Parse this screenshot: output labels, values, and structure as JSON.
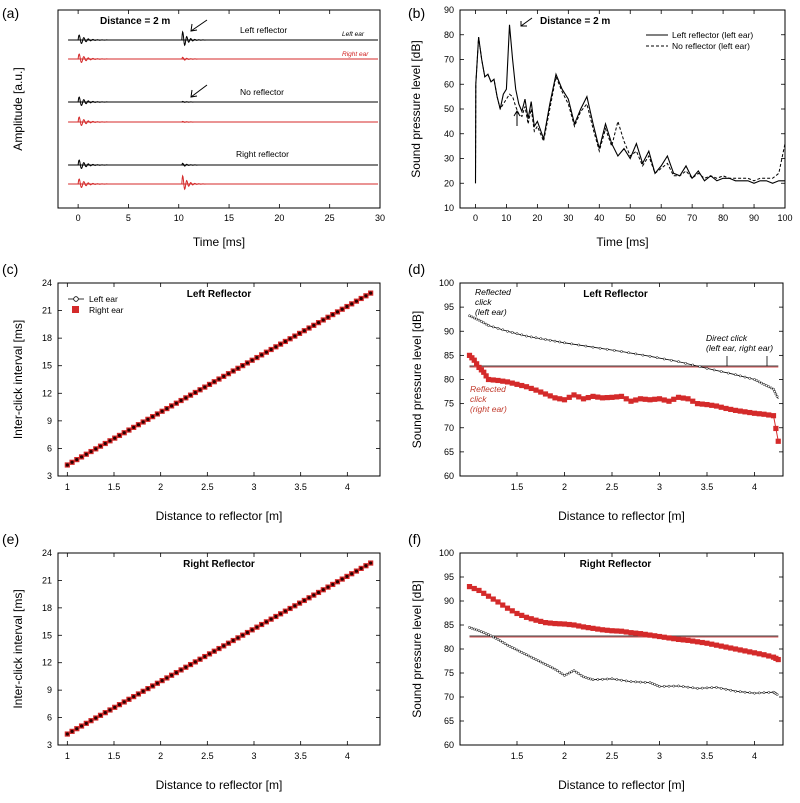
{
  "colors": {
    "red": "#d42a2a",
    "black": "#000000",
    "redline": "#e07070"
  },
  "panels": {
    "a": {
      "label": "(a)"
    },
    "b": {
      "label": "(b)"
    },
    "c": {
      "label": "(c)"
    },
    "d": {
      "label": "(d)"
    },
    "e": {
      "label": "(e)"
    },
    "f": {
      "label": "(f)"
    }
  },
  "chart_data": [
    {
      "id": "a",
      "type": "line",
      "title": "Distance = 2 m",
      "xlabel": "Time [ms]",
      "ylabel": "Amplitude [a.u.]",
      "xlim": [
        -2,
        30
      ],
      "xticks": [
        0,
        5,
        10,
        15,
        20,
        25,
        30
      ],
      "traces": [
        {
          "name": "Left reflector",
          "ear": "Left ear",
          "color": "#000000",
          "direct": 1.0,
          "reflected": 1.7
        },
        {
          "name": "Left reflector",
          "ear": "Right ear",
          "color": "#d42a2a",
          "direct": 1.0,
          "reflected": 0.35
        },
        {
          "name": "No reflector",
          "ear": "",
          "color": "#000000",
          "direct": 1.0,
          "reflected": 0.12
        },
        {
          "name": "No reflector",
          "ear": "",
          "color": "#d42a2a",
          "direct": 1.0,
          "reflected": 0.12
        },
        {
          "name": "Right reflector",
          "ear": "",
          "color": "#000000",
          "direct": 1.0,
          "reflected": 0.35
        },
        {
          "name": "Right reflector",
          "ear": "",
          "color": "#d42a2a",
          "direct": 1.0,
          "reflected": 1.7
        }
      ],
      "labels": {
        "left_reflector": "Left reflector",
        "no_reflector": "No reflector",
        "right_reflector": "Right reflector",
        "left_ear": "Left ear",
        "right_ear": "Right ear"
      }
    },
    {
      "id": "b",
      "type": "line",
      "title": "Distance = 2 m",
      "xlabel": "Time [ms]",
      "ylabel": "Sound pressure level [dB]",
      "xlim": [
        -5,
        100
      ],
      "ylim": [
        10,
        90
      ],
      "xticks": [
        0,
        10,
        20,
        30,
        40,
        50,
        60,
        70,
        80,
        90,
        100
      ],
      "yticks": [
        10,
        20,
        30,
        40,
        50,
        60,
        70,
        80,
        90
      ],
      "series": [
        {
          "name": "Left reflector (left ear)",
          "style": "solid",
          "x": [
            0,
            0.1,
            1,
            2,
            3,
            4,
            5,
            6,
            7,
            8,
            9,
            10,
            11,
            12,
            13,
            14,
            15,
            16,
            17,
            18,
            19,
            20,
            22,
            24,
            26,
            28,
            30,
            32,
            34,
            36,
            38,
            40,
            42,
            44,
            46,
            48,
            50,
            52,
            54,
            56,
            58,
            60,
            62,
            64,
            66,
            68,
            70,
            72,
            74,
            76,
            78,
            80,
            82,
            84,
            86,
            88,
            90,
            92,
            94,
            96,
            98,
            100
          ],
          "y": [
            20,
            60,
            79,
            70,
            63,
            64,
            61,
            62,
            55,
            50,
            56,
            58,
            84,
            70,
            58,
            52,
            49,
            54,
            46,
            53,
            43,
            45,
            38,
            52,
            64,
            58,
            54,
            44,
            50,
            55,
            44,
            34,
            44,
            36,
            31,
            34,
            30,
            36,
            28,
            33,
            24,
            27,
            31,
            24,
            23,
            27,
            22,
            25,
            21,
            23,
            21,
            22,
            22,
            21,
            21,
            21,
            20,
            21,
            21,
            20,
            21,
            21
          ]
        },
        {
          "name": "No reflector (left ear)",
          "style": "dashed",
          "x": [
            0,
            0.1,
            1,
            2,
            3,
            4,
            5,
            6,
            7,
            8,
            9,
            10,
            11,
            12,
            13,
            14,
            15,
            16,
            17,
            18,
            19,
            20,
            22,
            24,
            26,
            28,
            30,
            32,
            34,
            36,
            38,
            40,
            42,
            44,
            46,
            48,
            50,
            52,
            54,
            56,
            58,
            60,
            62,
            64,
            66,
            68,
            70,
            72,
            74,
            76,
            78,
            80,
            82,
            84,
            86,
            88,
            90,
            92,
            94,
            96,
            98,
            100
          ],
          "y": [
            20,
            60,
            79,
            70,
            63,
            64,
            61,
            62,
            55,
            50,
            52,
            54,
            56,
            55,
            51,
            48,
            47,
            51,
            44,
            50,
            41,
            43,
            37,
            50,
            63,
            57,
            52,
            43,
            49,
            52,
            42,
            33,
            42,
            35,
            45,
            37,
            31,
            33,
            27,
            31,
            24,
            26,
            28,
            23,
            23,
            25,
            22,
            24,
            22,
            23,
            22,
            23,
            22,
            22,
            22,
            22,
            21,
            22,
            22,
            22,
            24,
            36
          ]
        }
      ],
      "annotations": [
        "left-arrow-peak",
        "up-arrow-no-reflector"
      ]
    },
    {
      "id": "c",
      "type": "scatter",
      "title": "Left Reflector",
      "xlabel": "Distance to reflector [m]",
      "ylabel": "Inter-click interval [ms]",
      "xlim": [
        0.9,
        4.35
      ],
      "ylim": [
        3,
        24
      ],
      "xticks": [
        1,
        1.5,
        2,
        2.5,
        3,
        3.5,
        4
      ],
      "yticks": [
        3,
        6,
        9,
        12,
        15,
        18,
        21,
        24
      ],
      "series": [
        {
          "name": "Left ear",
          "marker": "open-circle",
          "x_start": 1.0,
          "x_end": 4.25,
          "y_start": 4.2,
          "y_end": 22.9,
          "n": 65
        },
        {
          "name": "Right ear",
          "marker": "red-square",
          "x_start": 1.0,
          "x_end": 4.25,
          "y_start": 4.2,
          "y_end": 22.9,
          "n": 65
        }
      ]
    },
    {
      "id": "d",
      "type": "line",
      "title": "Left Reflector",
      "xlabel": "Distance to reflector [m]",
      "ylabel": "Sound pressure level [dB]",
      "xlim": [
        0.9,
        4.3
      ],
      "ylim": [
        60,
        100
      ],
      "xticks": [
        1.5,
        2,
        2.5,
        3,
        3.5,
        4
      ],
      "yticks": [
        60,
        65,
        70,
        75,
        80,
        85,
        90,
        95,
        100
      ],
      "series": [
        {
          "name": "Reflected click (left ear)",
          "marker": "small-dot",
          "x": [
            1.0,
            1.1,
            1.2,
            1.4,
            1.6,
            1.8,
            2.0,
            2.3,
            2.6,
            2.9,
            3.2,
            3.5,
            3.8,
            4.0,
            4.1,
            4.2,
            4.25
          ],
          "y": [
            93.2,
            92.3,
            91.2,
            90.0,
            89.0,
            88.3,
            87.6,
            86.7,
            85.8,
            84.8,
            83.7,
            82.3,
            81.0,
            80.0,
            79.0,
            78.0,
            76.0
          ]
        },
        {
          "name": "Reflected click (right ear)",
          "marker": "red-square",
          "x": [
            1.0,
            1.05,
            1.1,
            1.15,
            1.2,
            1.3,
            1.4,
            1.5,
            1.6,
            1.7,
            1.8,
            1.9,
            2.0,
            2.1,
            2.2,
            2.3,
            2.4,
            2.5,
            2.6,
            2.7,
            2.8,
            2.9,
            3.0,
            3.1,
            3.2,
            3.3,
            3.4,
            3.5,
            3.6,
            3.7,
            3.8,
            3.9,
            4.0,
            4.1,
            4.2,
            4.25
          ],
          "y": [
            85.0,
            84.0,
            82.5,
            81.5,
            80.0,
            79.8,
            79.5,
            79.0,
            78.5,
            77.8,
            77.0,
            76.2,
            75.8,
            76.8,
            76.0,
            76.5,
            76.2,
            76.3,
            76.5,
            75.5,
            76.0,
            75.8,
            76.0,
            75.5,
            76.3,
            76.0,
            75.0,
            74.8,
            74.5,
            74.0,
            73.6,
            73.3,
            73.0,
            72.8,
            72.5,
            67.2
          ]
        },
        {
          "name": "Direct click (left ear)",
          "style": "line",
          "x": [
            1.0,
            4.25
          ],
          "y": [
            82.8,
            82.8
          ]
        },
        {
          "name": "Direct click (right ear)",
          "style": "line-red",
          "x": [
            1.0,
            4.25
          ],
          "y": [
            82.6,
            82.6
          ]
        }
      ],
      "labels": {
        "refl_left": [
          "Reflected",
          "click",
          "(left ear)"
        ],
        "refl_right": [
          "Reflected",
          "click",
          "(right ear)"
        ],
        "direct": "Direct click",
        "direct_ears": "(left ear,  right ear)"
      }
    },
    {
      "id": "e",
      "type": "scatter",
      "title": "Right Reflector",
      "xlabel": "Distance to reflector [m]",
      "ylabel": "Inter-click interval [ms]",
      "xlim": [
        0.9,
        4.35
      ],
      "ylim": [
        3,
        24
      ],
      "xticks": [
        1,
        1.5,
        2,
        2.5,
        3,
        3.5,
        4
      ],
      "yticks": [
        3,
        6,
        9,
        12,
        15,
        18,
        21,
        24
      ],
      "series": [
        {
          "name": "Left ear",
          "marker": "open-circle",
          "x_start": 1.0,
          "x_end": 4.25,
          "y_start": 4.2,
          "y_end": 22.9,
          "n": 65
        },
        {
          "name": "Right ear",
          "marker": "red-square",
          "x_start": 1.0,
          "x_end": 4.25,
          "y_start": 4.2,
          "y_end": 22.9,
          "n": 65
        }
      ]
    },
    {
      "id": "f",
      "type": "line",
      "title": "Right Reflector",
      "xlabel": "Distance to reflector [m]",
      "ylabel": "Sound pressure level [dB]",
      "xlim": [
        0.9,
        4.3
      ],
      "ylim": [
        60,
        100
      ],
      "xticks": [
        1.5,
        2,
        2.5,
        3,
        3.5,
        4
      ],
      "yticks": [
        60,
        65,
        70,
        75,
        80,
        85,
        90,
        95,
        100
      ],
      "series": [
        {
          "name": "Reflected click (right ear)",
          "marker": "red-square",
          "x": [
            1.0,
            1.1,
            1.2,
            1.3,
            1.4,
            1.5,
            1.6,
            1.7,
            1.8,
            1.9,
            2.0,
            2.1,
            2.2,
            2.3,
            2.4,
            2.5,
            2.6,
            2.7,
            2.8,
            2.9,
            3.0,
            3.1,
            3.2,
            3.3,
            3.4,
            3.5,
            3.6,
            3.7,
            3.8,
            3.9,
            4.0,
            4.1,
            4.2,
            4.25
          ],
          "y": [
            93.0,
            92.2,
            91.0,
            89.8,
            88.5,
            87.4,
            86.6,
            86.0,
            85.5,
            85.3,
            85.2,
            85.0,
            84.6,
            84.3,
            84.0,
            83.8,
            83.7,
            83.4,
            83.2,
            82.9,
            82.6,
            82.3,
            82.0,
            81.8,
            81.5,
            81.2,
            80.8,
            80.4,
            80.0,
            79.6,
            79.2,
            78.8,
            78.3,
            77.8
          ]
        },
        {
          "name": "Reflected click (left ear)",
          "marker": "small-dot",
          "x": [
            1.0,
            1.1,
            1.2,
            1.3,
            1.4,
            1.5,
            1.6,
            1.7,
            1.8,
            1.9,
            2.0,
            2.1,
            2.2,
            2.3,
            2.5,
            2.7,
            2.9,
            3.0,
            3.2,
            3.4,
            3.6,
            3.8,
            4.0,
            4.2,
            4.25
          ],
          "y": [
            84.5,
            83.8,
            83.0,
            82.0,
            80.8,
            79.8,
            78.8,
            77.8,
            76.8,
            75.8,
            74.5,
            75.5,
            74.2,
            73.6,
            73.8,
            73.2,
            73.0,
            72.2,
            72.3,
            71.8,
            72.0,
            71.2,
            70.8,
            71.0,
            70.4
          ]
        },
        {
          "name": "Direct click (left ear)",
          "style": "line",
          "x": [
            1.0,
            4.25
          ],
          "y": [
            82.7,
            82.7
          ]
        },
        {
          "name": "Direct click (right ear)",
          "style": "line-red",
          "x": [
            1.0,
            4.25
          ],
          "y": [
            82.5,
            82.5
          ]
        }
      ]
    }
  ]
}
